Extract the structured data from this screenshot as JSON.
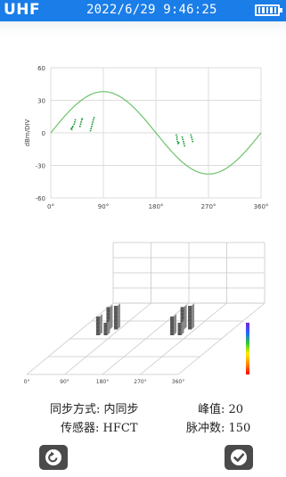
{
  "status_bar": {
    "mode": "UHF",
    "datetime": "2022/6/29 9:46:25",
    "battery_level": 1.0
  },
  "chart_data": [
    {
      "type": "scatter",
      "title": "",
      "ylabel": "dBm/DIV",
      "xlabel": "",
      "x_ticks": [
        "0°",
        "90°",
        "180°",
        "270°",
        "360°"
      ],
      "y_ticks": [
        "60",
        "30",
        "0",
        "-30",
        "-60"
      ],
      "xlim": [
        0,
        360
      ],
      "ylim": [
        -60,
        60
      ],
      "grid": true,
      "reference_sine_amplitude": 38,
      "series": [
        {
          "points": [
            [
              35,
              4
            ],
            [
              36,
              3
            ],
            [
              37,
              5
            ],
            [
              38,
              6
            ],
            [
              40,
              8
            ],
            [
              41,
              10
            ],
            [
              42,
              12
            ],
            [
              50,
              6
            ],
            [
              51,
              8
            ],
            [
              52,
              10
            ],
            [
              53,
              12
            ],
            [
              54,
              13
            ],
            [
              68,
              2
            ],
            [
              69,
              4
            ],
            [
              70,
              6
            ],
            [
              71,
              8
            ],
            [
              72,
              10
            ],
            [
              73,
              12
            ],
            [
              74,
              14
            ],
            [
              215,
              -2
            ],
            [
              216,
              -4
            ],
            [
              216,
              -6
            ],
            [
              217,
              -8
            ],
            [
              218,
              -10
            ],
            [
              219,
              -9
            ],
            [
              225,
              -4
            ],
            [
              226,
              -6
            ],
            [
              227,
              -8
            ],
            [
              228,
              -10
            ],
            [
              229,
              -12
            ],
            [
              240,
              -2
            ],
            [
              241,
              -4
            ],
            [
              242,
              -6
            ],
            [
              243,
              -8
            ]
          ]
        }
      ]
    },
    {
      "type": "bar3d",
      "x_ticks": [
        "0°",
        "90°",
        "180°",
        "270°",
        "360°"
      ],
      "xlim": [
        0,
        360
      ],
      "color_scale": [
        "#ff0000",
        "#ff8800",
        "#ffee00",
        "#33cc33",
        "#2266ff",
        "#7a22dd"
      ],
      "clusters": [
        {
          "bars": [
            {
              "phase": 52,
              "height": 0.3
            },
            {
              "phase": 60,
              "height": 0.36
            },
            {
              "phase": 70,
              "height": 0.2
            },
            {
              "phase": 78,
              "height": 0.38
            }
          ]
        },
        {
          "bars": [
            {
              "phase": 228,
              "height": 0.3
            },
            {
              "phase": 236,
              "height": 0.36
            },
            {
              "phase": 246,
              "height": 0.2
            },
            {
              "phase": 254,
              "height": 0.38
            }
          ]
        }
      ]
    }
  ],
  "info": {
    "sync_label": "同步方式: 内同步",
    "sensor_label": "传感器: HFCT",
    "peak_label": "峰值: 20",
    "pulse_label": "脉冲数: 150"
  },
  "buttons": {
    "back_icon": "back-arrow-icon",
    "confirm_icon": "checkmark-icon"
  }
}
